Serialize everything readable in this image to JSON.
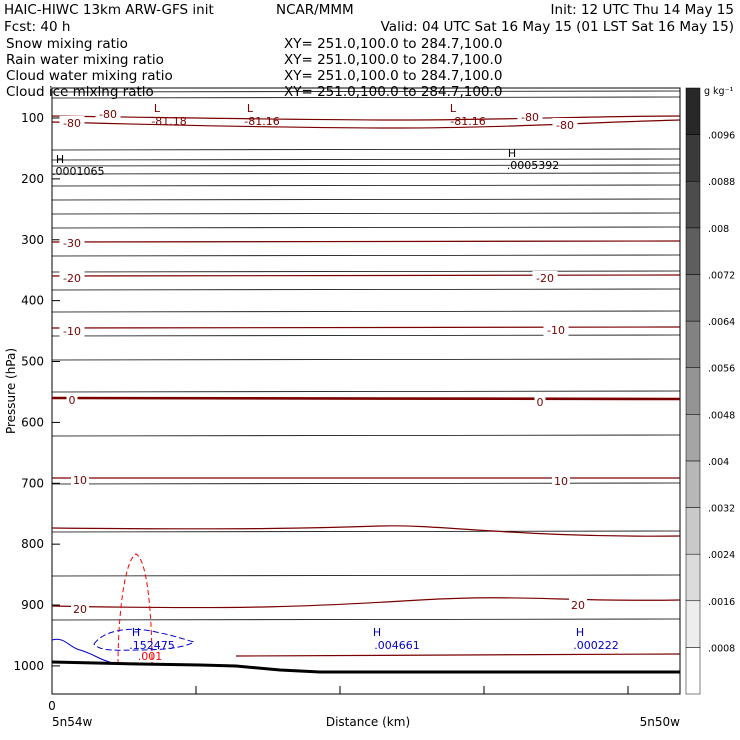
{
  "header": {
    "title_left": "HAIC-HIWC 13km ARW-GFS init",
    "title_org": "NCAR/MMM",
    "init": "Init: 12 UTC Thu 14 May 15",
    "fcst": "Fcst:   40 h",
    "valid": "Valid: 04 UTC Sat 16 May 15 (01 LST Sat 16 May 15)"
  },
  "fields": [
    {
      "name": "Snow mixing ratio",
      "xy": "XY= 251.0,100.0 to 284.7,100.0",
      "color": "#000000"
    },
    {
      "name": "Rain water mixing ratio",
      "xy": "XY= 251.0,100.0 to 284.7,100.0",
      "color": "#ff0000"
    },
    {
      "name": "Cloud water mixing ratio",
      "xy": "XY= 251.0,100.0 to 284.7,100.0",
      "color": "#0000cc"
    },
    {
      "name": "Cloud ice mixing ratio",
      "xy": "XY= 251.0,100.0 to 284.7,100.0",
      "color": "#000000"
    }
  ],
  "chart_data": {
    "type": "cross-section",
    "ylabel": "Pressure (hPa)",
    "xlabel": "Distance (km)",
    "y_axis": "pressure",
    "ylim": [
      1050,
      50
    ],
    "y_ticks": [
      100,
      200,
      300,
      400,
      500,
      600,
      700,
      800,
      900,
      1000
    ],
    "x_ticks": [
      "0"
    ],
    "x_endpoints": [
      "5n54w",
      "5n50w"
    ],
    "colorbar": {
      "unit": "g kg⁻¹",
      "levels": [
        ".0008",
        ".0016",
        ".0024",
        ".0032",
        ".004",
        ".0048",
        ".0056",
        ".0064",
        ".0072",
        ".008",
        ".0088",
        ".0096"
      ]
    },
    "temperature_labels": [
      "-80",
      "-30",
      "-20",
      "-10",
      "0",
      "10",
      "20"
    ],
    "extrema": [
      {
        "type": "L",
        "value": "-81.18"
      },
      {
        "type": "L",
        "value": "-81.16"
      },
      {
        "type": "L",
        "value": "-81.16"
      },
      {
        "type": "H",
        "value": ".0001065"
      },
      {
        "type": "H",
        "value": ".0005392"
      },
      {
        "type": "H",
        "value": ".152475",
        "color": "#0000cc"
      },
      {
        "type": "H",
        "value": ".004661",
        "color": "#0000cc"
      },
      {
        "type": "H",
        "value": ".000222",
        "color": "#0000cc"
      }
    ],
    "rain_contour_label": ".001",
    "colors": {
      "isotherm": "#7a0000",
      "theta": "#000000",
      "rain": "#ff0000",
      "cloud": "#0000cc"
    }
  }
}
